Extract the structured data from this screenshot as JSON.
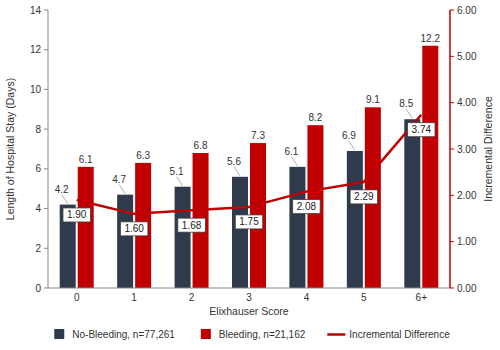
{
  "chart_data": {
    "type": "bar",
    "categories": [
      "0",
      "1",
      "2",
      "3",
      "4",
      "5",
      "6+"
    ],
    "x_label": "Elixhauser Score",
    "y_label": "Length of Hospital Stay (Days)",
    "y2_label": "Incremental Difference",
    "ylim": [
      0,
      14
    ],
    "yticks": [
      0,
      2,
      4,
      6,
      8,
      10,
      12,
      14
    ],
    "y2lim": [
      0,
      6
    ],
    "y2ticks": [
      {
        "value": 0,
        "label": "0.00"
      },
      {
        "value": 1,
        "label": "1.00"
      },
      {
        "value": 2,
        "label": "2.00"
      },
      {
        "value": 3,
        "label": "3.00"
      },
      {
        "value": 4,
        "label": "4.00"
      },
      {
        "value": 5,
        "label": "5.00"
      },
      {
        "value": 6,
        "label": "6.00"
      }
    ],
    "grid": false,
    "legend": "bottom",
    "data_labels": true,
    "series": [
      {
        "name": "No-Bleeding, n=77,261",
        "color": "#2f3b4c",
        "values": [
          4.2,
          4.7,
          5.1,
          5.6,
          6.1,
          6.9,
          8.5
        ]
      },
      {
        "name": "Bleeding, n=21,162",
        "color": "#c00000",
        "values": [
          6.1,
          6.3,
          6.8,
          7.3,
          8.2,
          9.1,
          12.2
        ]
      },
      {
        "name": "Incremental Difference",
        "type": "line",
        "axis": "y2",
        "color": "#c00000",
        "values": [
          1.9,
          1.6,
          1.68,
          1.75,
          2.08,
          2.29,
          3.74
        ],
        "value_labels": [
          "1.90",
          "1.60",
          "1.68",
          "1.75",
          "2.08",
          "2.29",
          "3.74"
        ]
      }
    ]
  }
}
